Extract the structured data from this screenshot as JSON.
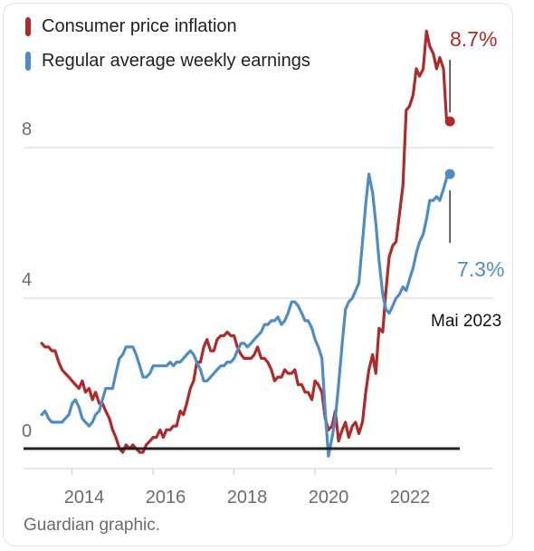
{
  "chart_data": {
    "type": "line",
    "ylim": [
      0,
      10
    ],
    "xlim": [
      2012.8,
      2024.4
    ],
    "grid": true,
    "legend_position": "top-left",
    "yticks": [
      {
        "value": 0,
        "label": "0"
      },
      {
        "value": 4,
        "label": "4"
      },
      {
        "value": 8,
        "label": "8"
      }
    ],
    "xticks": [
      {
        "value": 2014,
        "label": "2014"
      },
      {
        "value": 2016,
        "label": "2016"
      },
      {
        "value": 2018,
        "label": "2018"
      },
      {
        "value": 2020,
        "label": "2020"
      },
      {
        "value": 2022,
        "label": "2022"
      }
    ],
    "series": [
      {
        "name": "Consumer price inflation",
        "color": "#b02a2a",
        "end_label": "8.7%",
        "points": [
          [
            2013.25,
            2.8
          ],
          [
            2013.33,
            2.7
          ],
          [
            2013.42,
            2.7
          ],
          [
            2013.5,
            2.6
          ],
          [
            2013.58,
            2.6
          ],
          [
            2013.67,
            2.3
          ],
          [
            2013.75,
            2.1
          ],
          [
            2013.83,
            2.0
          ],
          [
            2013.92,
            1.9
          ],
          [
            2014.0,
            1.8
          ],
          [
            2014.08,
            1.7
          ],
          [
            2014.17,
            1.6
          ],
          [
            2014.25,
            1.8
          ],
          [
            2014.33,
            1.5
          ],
          [
            2014.42,
            1.6
          ],
          [
            2014.5,
            1.3
          ],
          [
            2014.58,
            1.5
          ],
          [
            2014.67,
            1.2
          ],
          [
            2014.75,
            1.2
          ],
          [
            2014.83,
            1.0
          ],
          [
            2014.92,
            0.8
          ],
          [
            2015.0,
            0.5
          ],
          [
            2015.08,
            0.3
          ],
          [
            2015.17,
            0.0
          ],
          [
            2015.25,
            -0.1
          ],
          [
            2015.33,
            0.1
          ],
          [
            2015.42,
            0.0
          ],
          [
            2015.5,
            0.1
          ],
          [
            2015.58,
            0.0
          ],
          [
            2015.67,
            -0.1
          ],
          [
            2015.75,
            -0.1
          ],
          [
            2015.83,
            0.1
          ],
          [
            2015.92,
            0.2
          ],
          [
            2016.0,
            0.3
          ],
          [
            2016.08,
            0.3
          ],
          [
            2016.17,
            0.5
          ],
          [
            2016.25,
            0.3
          ],
          [
            2016.33,
            0.5
          ],
          [
            2016.42,
            0.5
          ],
          [
            2016.5,
            0.6
          ],
          [
            2016.58,
            0.6
          ],
          [
            2016.67,
            1.0
          ],
          [
            2016.75,
            0.9
          ],
          [
            2016.83,
            1.2
          ],
          [
            2016.92,
            1.6
          ],
          [
            2017.0,
            1.8
          ],
          [
            2017.08,
            2.3
          ],
          [
            2017.17,
            2.3
          ],
          [
            2017.25,
            2.7
          ],
          [
            2017.33,
            2.9
          ],
          [
            2017.42,
            2.6
          ],
          [
            2017.5,
            2.6
          ],
          [
            2017.58,
            2.9
          ],
          [
            2017.67,
            3.0
          ],
          [
            2017.75,
            3.0
          ],
          [
            2017.83,
            3.1
          ],
          [
            2017.92,
            3.0
          ],
          [
            2018.0,
            3.0
          ],
          [
            2018.08,
            2.7
          ],
          [
            2018.17,
            2.5
          ],
          [
            2018.25,
            2.4
          ],
          [
            2018.33,
            2.4
          ],
          [
            2018.42,
            2.4
          ],
          [
            2018.5,
            2.5
          ],
          [
            2018.58,
            2.7
          ],
          [
            2018.67,
            2.4
          ],
          [
            2018.75,
            2.4
          ],
          [
            2018.83,
            2.3
          ],
          [
            2018.92,
            2.1
          ],
          [
            2019.0,
            1.8
          ],
          [
            2019.08,
            1.9
          ],
          [
            2019.17,
            1.9
          ],
          [
            2019.25,
            2.1
          ],
          [
            2019.33,
            2.0
          ],
          [
            2019.42,
            2.0
          ],
          [
            2019.5,
            2.1
          ],
          [
            2019.58,
            1.7
          ],
          [
            2019.67,
            1.7
          ],
          [
            2019.75,
            1.5
          ],
          [
            2019.83,
            1.5
          ],
          [
            2019.92,
            1.3
          ],
          [
            2020.0,
            1.8
          ],
          [
            2020.08,
            1.7
          ],
          [
            2020.17,
            1.5
          ],
          [
            2020.25,
            0.8
          ],
          [
            2020.33,
            0.5
          ],
          [
            2020.42,
            0.6
          ],
          [
            2020.5,
            1.0
          ],
          [
            2020.58,
            0.2
          ],
          [
            2020.67,
            0.5
          ],
          [
            2020.75,
            0.7
          ],
          [
            2020.83,
            0.3
          ],
          [
            2020.92,
            0.6
          ],
          [
            2021.0,
            0.7
          ],
          [
            2021.08,
            0.4
          ],
          [
            2021.17,
            0.7
          ],
          [
            2021.25,
            1.5
          ],
          [
            2021.33,
            2.1
          ],
          [
            2021.42,
            2.5
          ],
          [
            2021.5,
            2.0
          ],
          [
            2021.58,
            3.2
          ],
          [
            2021.67,
            3.1
          ],
          [
            2021.75,
            4.2
          ],
          [
            2021.83,
            5.1
          ],
          [
            2021.92,
            5.4
          ],
          [
            2022.0,
            5.5
          ],
          [
            2022.08,
            6.2
          ],
          [
            2022.17,
            7.0
          ],
          [
            2022.25,
            9.0
          ],
          [
            2022.33,
            9.1
          ],
          [
            2022.42,
            9.4
          ],
          [
            2022.5,
            10.1
          ],
          [
            2022.58,
            9.9
          ],
          [
            2022.67,
            10.1
          ],
          [
            2022.75,
            11.1
          ],
          [
            2022.83,
            10.7
          ],
          [
            2022.92,
            10.5
          ],
          [
            2023.0,
            10.1
          ],
          [
            2023.08,
            10.4
          ],
          [
            2023.17,
            10.1
          ],
          [
            2023.25,
            8.7
          ],
          [
            2023.33,
            8.7
          ]
        ]
      },
      {
        "name": "Regular average weekly earnings",
        "color": "#4f8cc4",
        "end_label": "7.3%",
        "points": [
          [
            2013.25,
            0.9
          ],
          [
            2013.33,
            1.0
          ],
          [
            2013.42,
            0.8
          ],
          [
            2013.5,
            0.7
          ],
          [
            2013.58,
            0.7
          ],
          [
            2013.67,
            0.7
          ],
          [
            2013.75,
            0.7
          ],
          [
            2013.83,
            0.8
          ],
          [
            2013.92,
            0.9
          ],
          [
            2014.0,
            1.2
          ],
          [
            2014.08,
            1.3
          ],
          [
            2014.17,
            1.1
          ],
          [
            2014.25,
            0.8
          ],
          [
            2014.33,
            0.7
          ],
          [
            2014.42,
            0.6
          ],
          [
            2014.5,
            0.7
          ],
          [
            2014.58,
            0.9
          ],
          [
            2014.67,
            1.0
          ],
          [
            2014.75,
            1.3
          ],
          [
            2014.83,
            1.6
          ],
          [
            2014.92,
            1.6
          ],
          [
            2015.0,
            1.6
          ],
          [
            2015.08,
            2.0
          ],
          [
            2015.17,
            2.4
          ],
          [
            2015.25,
            2.5
          ],
          [
            2015.33,
            2.7
          ],
          [
            2015.42,
            2.7
          ],
          [
            2015.5,
            2.7
          ],
          [
            2015.58,
            2.5
          ],
          [
            2015.67,
            2.2
          ],
          [
            2015.75,
            1.9
          ],
          [
            2015.83,
            1.9
          ],
          [
            2015.92,
            2.0
          ],
          [
            2016.0,
            2.2
          ],
          [
            2016.08,
            2.2
          ],
          [
            2016.17,
            2.2
          ],
          [
            2016.25,
            2.2
          ],
          [
            2016.33,
            2.2
          ],
          [
            2016.42,
            2.3
          ],
          [
            2016.5,
            2.2
          ],
          [
            2016.58,
            2.3
          ],
          [
            2016.67,
            2.3
          ],
          [
            2016.75,
            2.4
          ],
          [
            2016.83,
            2.5
          ],
          [
            2016.92,
            2.6
          ],
          [
            2017.0,
            2.5
          ],
          [
            2017.08,
            2.3
          ],
          [
            2017.17,
            2.1
          ],
          [
            2017.25,
            1.8
          ],
          [
            2017.33,
            1.8
          ],
          [
            2017.42,
            1.9
          ],
          [
            2017.5,
            2.0
          ],
          [
            2017.58,
            2.1
          ],
          [
            2017.67,
            2.2
          ],
          [
            2017.75,
            2.2
          ],
          [
            2017.83,
            2.3
          ],
          [
            2017.92,
            2.3
          ],
          [
            2018.0,
            2.4
          ],
          [
            2018.08,
            2.6
          ],
          [
            2018.17,
            2.8
          ],
          [
            2018.25,
            2.8
          ],
          [
            2018.33,
            2.7
          ],
          [
            2018.42,
            2.8
          ],
          [
            2018.5,
            2.9
          ],
          [
            2018.58,
            3.0
          ],
          [
            2018.67,
            3.1
          ],
          [
            2018.75,
            3.3
          ],
          [
            2018.83,
            3.3
          ],
          [
            2018.92,
            3.4
          ],
          [
            2019.0,
            3.4
          ],
          [
            2019.08,
            3.5
          ],
          [
            2019.17,
            3.3
          ],
          [
            2019.25,
            3.4
          ],
          [
            2019.33,
            3.6
          ],
          [
            2019.42,
            3.9
          ],
          [
            2019.5,
            3.9
          ],
          [
            2019.58,
            3.8
          ],
          [
            2019.67,
            3.6
          ],
          [
            2019.75,
            3.4
          ],
          [
            2019.83,
            3.4
          ],
          [
            2019.92,
            3.2
          ],
          [
            2020.0,
            2.9
          ],
          [
            2020.08,
            2.7
          ],
          [
            2020.17,
            2.4
          ],
          [
            2020.25,
            1.0
          ],
          [
            2020.33,
            -0.2
          ],
          [
            2020.42,
            0.3
          ],
          [
            2020.5,
            0.8
          ],
          [
            2020.58,
            1.7
          ],
          [
            2020.67,
            2.8
          ],
          [
            2020.75,
            3.7
          ],
          [
            2020.83,
            3.9
          ],
          [
            2020.92,
            4.0
          ],
          [
            2021.0,
            4.2
          ],
          [
            2021.08,
            4.4
          ],
          [
            2021.17,
            5.5
          ],
          [
            2021.25,
            6.5
          ],
          [
            2021.33,
            7.3
          ],
          [
            2021.42,
            6.8
          ],
          [
            2021.5,
            6.0
          ],
          [
            2021.58,
            5.0
          ],
          [
            2021.67,
            4.1
          ],
          [
            2021.75,
            3.7
          ],
          [
            2021.83,
            3.6
          ],
          [
            2021.92,
            3.8
          ],
          [
            2022.0,
            4.0
          ],
          [
            2022.08,
            4.1
          ],
          [
            2022.17,
            4.3
          ],
          [
            2022.25,
            4.2
          ],
          [
            2022.33,
            4.5
          ],
          [
            2022.42,
            4.8
          ],
          [
            2022.5,
            5.2
          ],
          [
            2022.58,
            5.5
          ],
          [
            2022.67,
            5.7
          ],
          [
            2022.75,
            6.1
          ],
          [
            2022.83,
            6.6
          ],
          [
            2022.92,
            6.6
          ],
          [
            2023.0,
            6.7
          ],
          [
            2023.08,
            6.6
          ],
          [
            2023.17,
            6.9
          ],
          [
            2023.25,
            7.2
          ],
          [
            2023.33,
            7.3
          ]
        ]
      }
    ],
    "annotation": "Mai 2023",
    "source": "Guardian graphic."
  }
}
